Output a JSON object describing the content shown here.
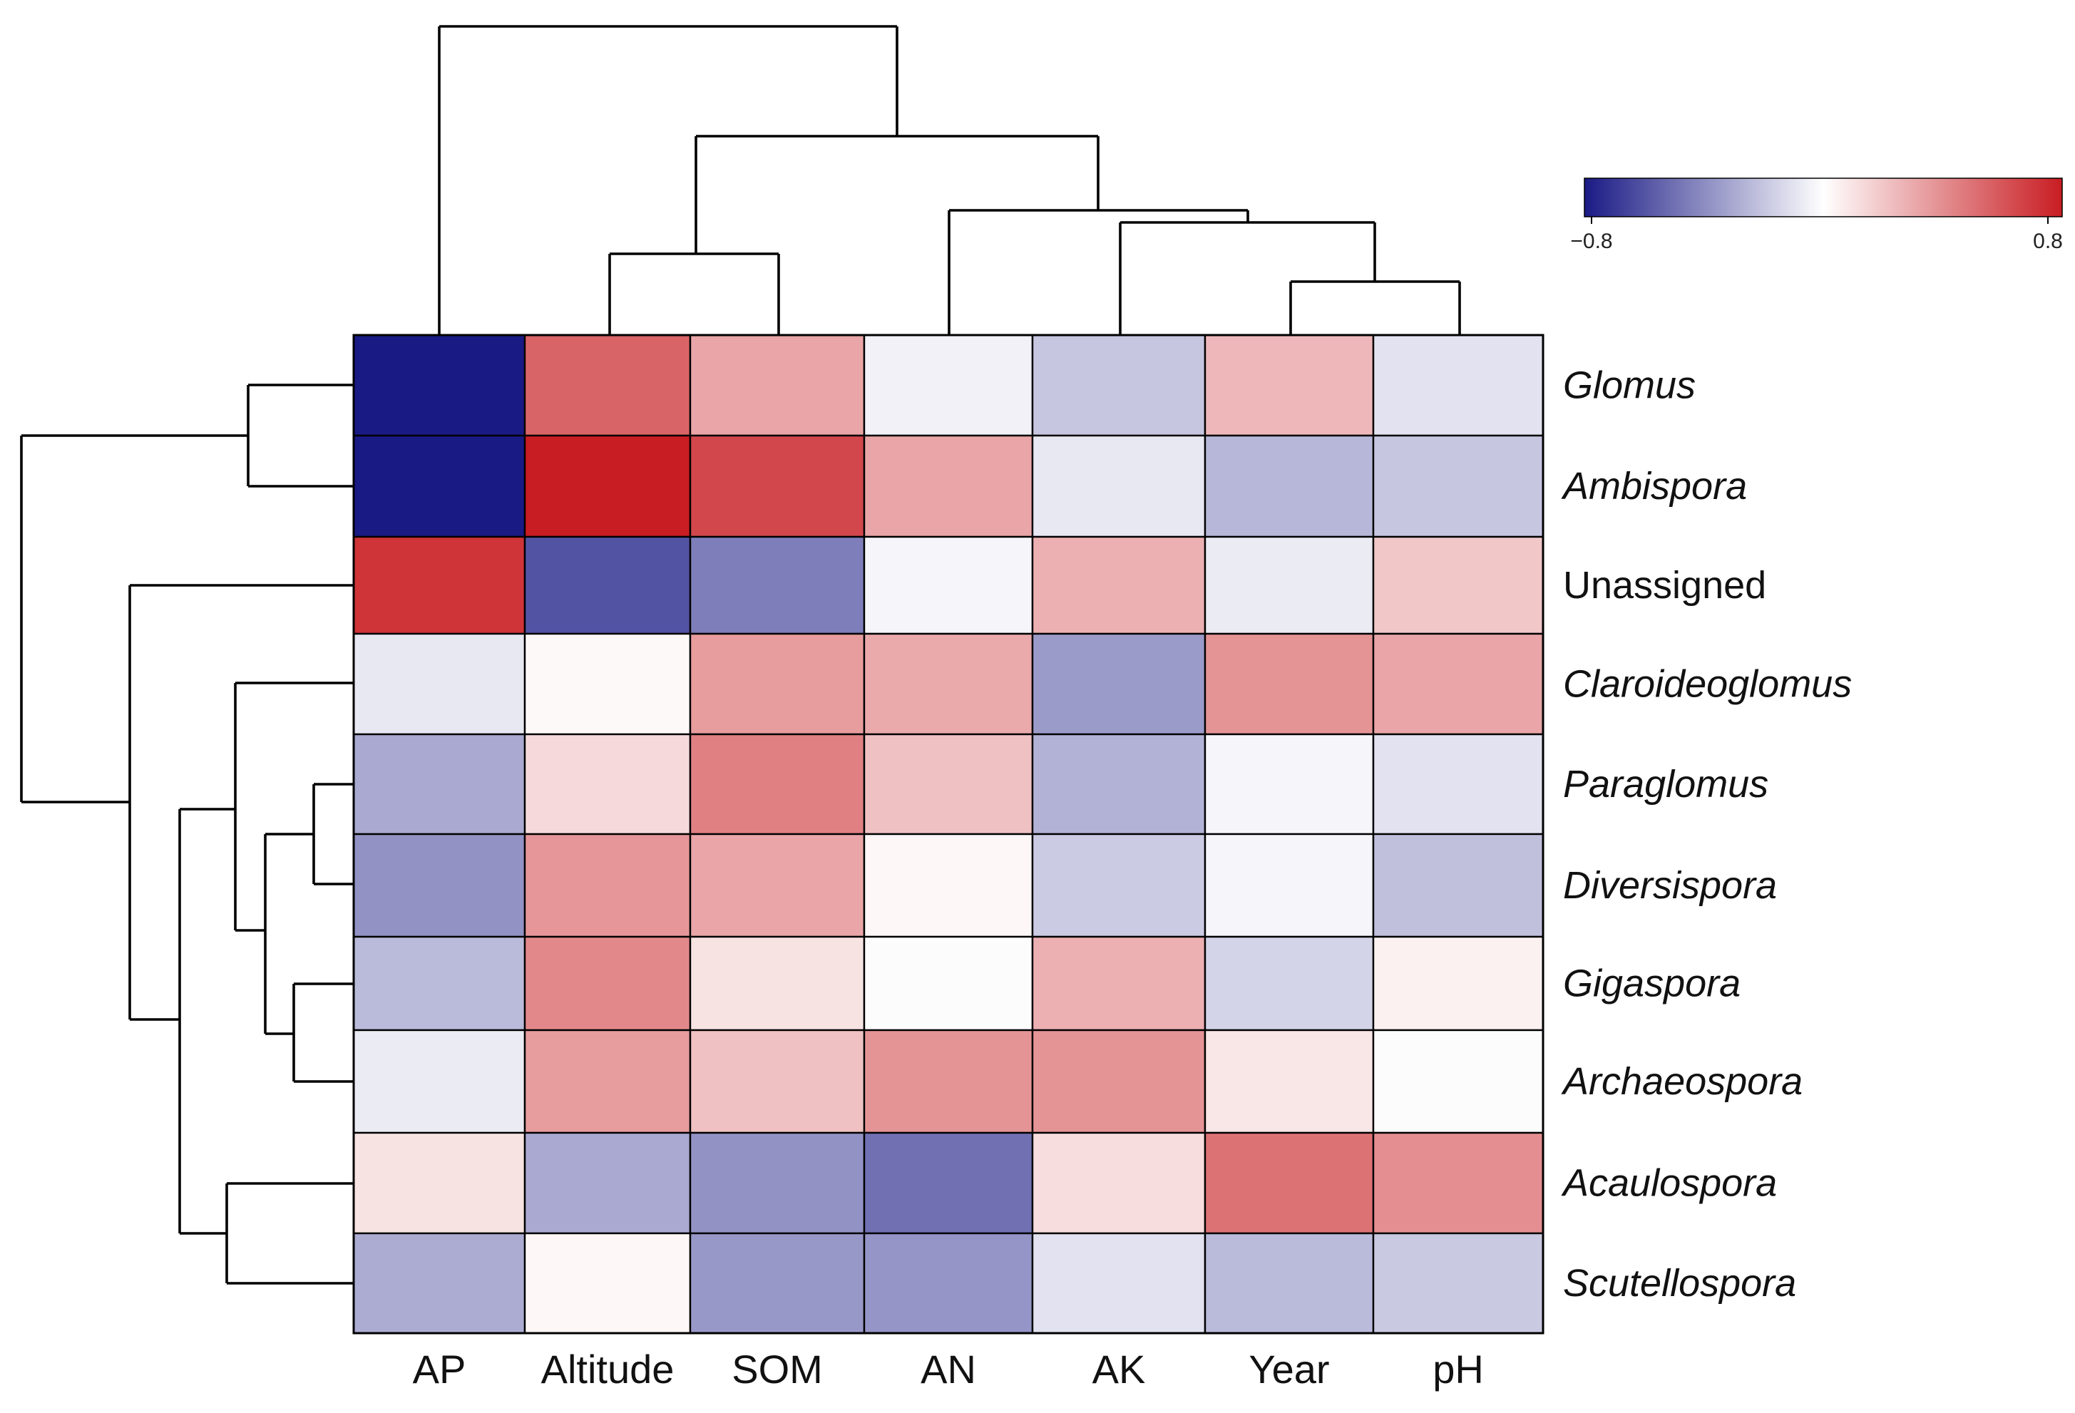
{
  "chart_data": {
    "type": "heatmap",
    "title": "",
    "columns": [
      "AP",
      "Altitude",
      "SOM",
      "AN",
      "AK",
      "Year",
      "pH"
    ],
    "rows": [
      {
        "label": "Glomus",
        "italic": true
      },
      {
        "label": "Ambispora",
        "italic": true
      },
      {
        "label": "Unassigned",
        "italic": false
      },
      {
        "label": "Claroideoglomus",
        "italic": true
      },
      {
        "label": "Paraglomus",
        "italic": true
      },
      {
        "label": "Diversispora",
        "italic": true
      },
      {
        "label": "Gigaspora",
        "italic": true
      },
      {
        "label": "Archaeospora",
        "italic": true
      },
      {
        "label": "Acaulospora",
        "italic": true
      },
      {
        "label": "Scutellospora",
        "italic": true
      }
    ],
    "values": [
      [
        -0.8,
        0.55,
        0.32,
        -0.05,
        -0.2,
        0.25,
        -0.1
      ],
      [
        -0.8,
        0.8,
        0.65,
        0.32,
        -0.08,
        -0.25,
        -0.2
      ],
      [
        0.72,
        -0.6,
        -0.45,
        -0.03,
        0.28,
        -0.07,
        0.2
      ],
      [
        -0.08,
        0.02,
        0.35,
        0.3,
        -0.35,
        0.38,
        0.32
      ],
      [
        -0.3,
        0.13,
        0.45,
        0.22,
        -0.27,
        -0.03,
        -0.1
      ],
      [
        -0.38,
        0.37,
        0.32,
        0.03,
        -0.18,
        -0.03,
        -0.22
      ],
      [
        -0.24,
        0.42,
        0.1,
        -0.01,
        0.28,
        -0.15,
        0.05
      ],
      [
        -0.07,
        0.35,
        0.22,
        0.38,
        0.38,
        0.09,
        -0.01
      ],
      [
        0.1,
        -0.3,
        -0.38,
        -0.5,
        0.12,
        0.5,
        0.4
      ],
      [
        -0.29,
        0.03,
        -0.36,
        -0.37,
        -0.1,
        -0.24,
        -0.19
      ]
    ],
    "color_scale": {
      "min": -0.8,
      "max": 0.8,
      "low_color": "#1a1a85",
      "mid_color": "#ffffff",
      "high_color": "#c81d22"
    },
    "legend": {
      "position": "top-right",
      "min_label": "−0.8",
      "max_label": "0.8"
    },
    "column_dendrogram": true,
    "row_dendrogram": true
  }
}
